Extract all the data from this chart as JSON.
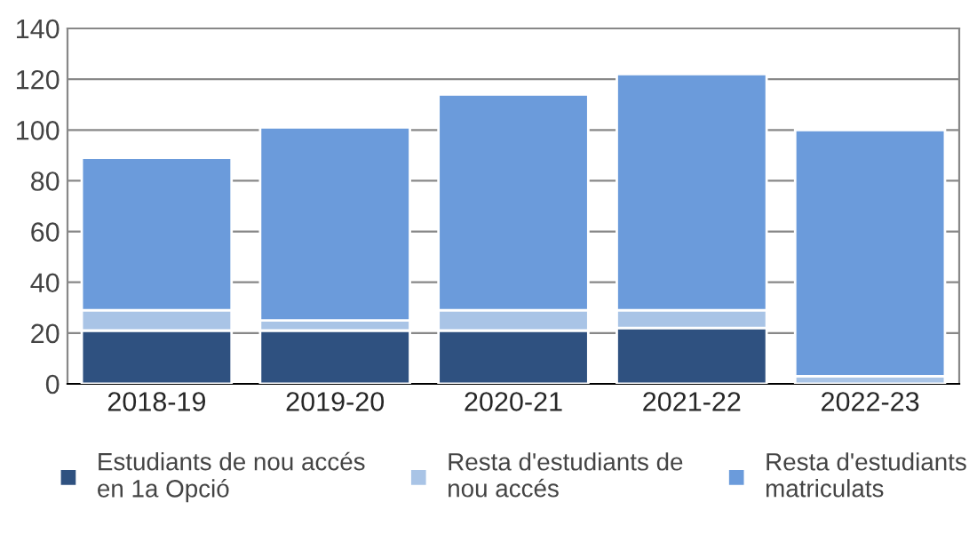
{
  "chart_data": {
    "type": "bar",
    "stacked": true,
    "categories": [
      "2018-19",
      "2019-20",
      "2020-21",
      "2021-22",
      "2022-23"
    ],
    "series": [
      {
        "name": "Estudiants de nou accés\nen 1a Opció",
        "color": "#2f5180",
        "values": [
          21,
          21,
          21,
          22,
          0
        ]
      },
      {
        "name": "Resta d'estudiants de\nnou accés",
        "color": "#a9c4e6",
        "values": [
          8,
          4,
          8,
          7,
          3
        ]
      },
      {
        "name": "Resta d'estudiants\nmatriculats",
        "color": "#6b9bdb",
        "values": [
          60,
          76,
          85,
          93,
          97
        ]
      }
    ],
    "ylim": [
      0,
      140
    ],
    "yticks": [
      0,
      20,
      40,
      60,
      80,
      100,
      120,
      140
    ],
    "grid": "y",
    "legend": "bottom"
  }
}
